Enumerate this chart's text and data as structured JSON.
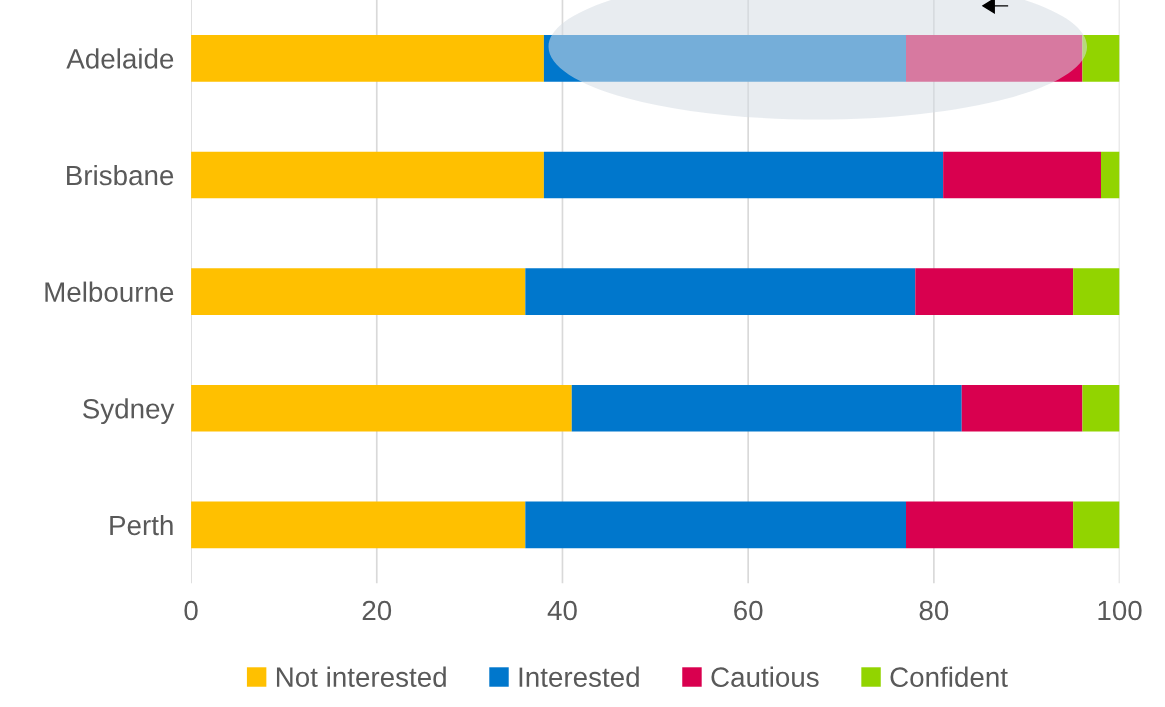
{
  "chart_data": {
    "type": "bar",
    "orientation": "horizontal",
    "stacked": true,
    "categories": [
      "Adelaide",
      "Brisbane",
      "Melbourne",
      "Sydney",
      "Perth"
    ],
    "series": [
      {
        "name": "Not interested",
        "color": "#ffc000",
        "values": [
          38,
          38,
          36,
          41,
          36
        ]
      },
      {
        "name": "Interested",
        "color": "#0077cc",
        "values": [
          39,
          43,
          42,
          42,
          41
        ]
      },
      {
        "name": "Cautious",
        "color": "#d9004f",
        "values": [
          19,
          17,
          17,
          13,
          18
        ]
      },
      {
        "name": "Confident",
        "color": "#92d400",
        "values": [
          4,
          2,
          5,
          4,
          5
        ]
      }
    ],
    "xlim": [
      0,
      100
    ],
    "xticks": [
      0,
      20,
      40,
      60,
      80,
      100
    ],
    "grid": "x",
    "legend": "bottom"
  }
}
